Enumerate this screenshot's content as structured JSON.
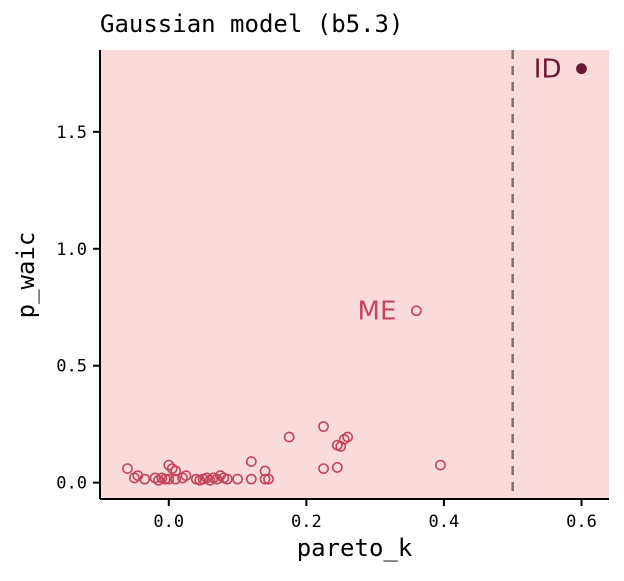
{
  "colors": {
    "panel_background": "#f9dbdc",
    "point_color": "#c4465b",
    "highlight_color": "#6b1836",
    "reference_line": "#7a7272",
    "axis_color": "#000000"
  },
  "chart_data": {
    "type": "scatter",
    "title": "Gaussian model (b5.3)",
    "xlabel": "pareto_k",
    "ylabel": "p_waic",
    "xlim": [
      -0.1,
      0.64
    ],
    "ylim": [
      -0.07,
      1.85
    ],
    "xticks": [
      0.0,
      0.2,
      0.4,
      0.6
    ],
    "xtick_labels": [
      "0.0",
      "0.2",
      "0.4",
      "0.6"
    ],
    "yticks": [
      0.0,
      0.5,
      1.0,
      1.5
    ],
    "ytick_labels": [
      "0.0",
      "0.5",
      "1.0",
      "1.5"
    ],
    "grid": false,
    "reference_line": {
      "orientation": "vertical",
      "x": 0.5,
      "style": "dashed"
    },
    "points": [
      {
        "x": -0.06,
        "y": 0.06
      },
      {
        "x": -0.05,
        "y": 0.02
      },
      {
        "x": -0.045,
        "y": 0.03
      },
      {
        "x": -0.035,
        "y": 0.015
      },
      {
        "x": -0.02,
        "y": 0.02
      },
      {
        "x": -0.015,
        "y": 0.01
      },
      {
        "x": -0.01,
        "y": 0.02
      },
      {
        "x": -0.005,
        "y": 0.015
      },
      {
        "x": 0.0,
        "y": 0.015
      },
      {
        "x": 0.0,
        "y": 0.075
      },
      {
        "x": 0.005,
        "y": 0.06
      },
      {
        "x": 0.01,
        "y": 0.015
      },
      {
        "x": 0.01,
        "y": 0.05
      },
      {
        "x": 0.02,
        "y": 0.02
      },
      {
        "x": 0.025,
        "y": 0.03
      },
      {
        "x": 0.04,
        "y": 0.015
      },
      {
        "x": 0.045,
        "y": 0.01
      },
      {
        "x": 0.05,
        "y": 0.015
      },
      {
        "x": 0.055,
        "y": 0.02
      },
      {
        "x": 0.06,
        "y": 0.01
      },
      {
        "x": 0.065,
        "y": 0.02
      },
      {
        "x": 0.07,
        "y": 0.015
      },
      {
        "x": 0.075,
        "y": 0.03
      },
      {
        "x": 0.08,
        "y": 0.02
      },
      {
        "x": 0.085,
        "y": 0.015
      },
      {
        "x": 0.1,
        "y": 0.015
      },
      {
        "x": 0.12,
        "y": 0.09
      },
      {
        "x": 0.12,
        "y": 0.015
      },
      {
        "x": 0.14,
        "y": 0.05
      },
      {
        "x": 0.14,
        "y": 0.015
      },
      {
        "x": 0.145,
        "y": 0.015
      },
      {
        "x": 0.175,
        "y": 0.195
      },
      {
        "x": 0.225,
        "y": 0.24
      },
      {
        "x": 0.225,
        "y": 0.06
      },
      {
        "x": 0.245,
        "y": 0.065
      },
      {
        "x": 0.245,
        "y": 0.16
      },
      {
        "x": 0.25,
        "y": 0.155
      },
      {
        "x": 0.255,
        "y": 0.185
      },
      {
        "x": 0.26,
        "y": 0.195
      },
      {
        "x": 0.395,
        "y": 0.075
      }
    ],
    "labeled_points": [
      {
        "label": "ME",
        "x": 0.36,
        "y": 0.735,
        "filled": false
      },
      {
        "label": "ID",
        "x": 0.6,
        "y": 1.77,
        "filled": true
      }
    ]
  }
}
